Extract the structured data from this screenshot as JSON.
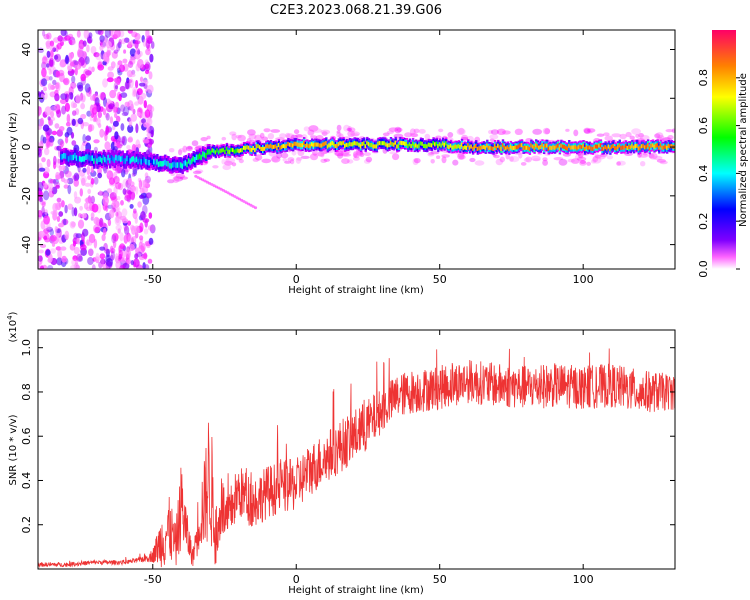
{
  "title": "C2E3.2023.068.21.39.G06",
  "chart_data": [
    {
      "type": "heatmap",
      "xlabel": "Height of straight line (km)",
      "ylabel": "Frequency (Hz)",
      "xlim": [
        -90,
        132
      ],
      "ylim": [
        -50,
        48
      ],
      "xticks": [
        -50,
        0,
        50,
        100
      ],
      "yticks": [
        -40,
        -20,
        0,
        20,
        40
      ],
      "colorbar": {
        "label": "Normalized spectral amplitude",
        "range": [
          0,
          1
        ],
        "ticks": [
          "0.0",
          "0.2",
          "0.4",
          "0.6",
          "0.8"
        ],
        "colormap": [
          "#ffffff",
          "#ff00ff",
          "#8000ff",
          "#0000ff",
          "#00ffff",
          "#00ff00",
          "#ffff00",
          "#ff8000",
          "#ff0000"
        ]
      },
      "trace": {
        "x": [
          -80,
          -70,
          -60,
          -50,
          -45,
          -40,
          -35,
          -30,
          -20,
          -10,
          0,
          10,
          20,
          30,
          40,
          50,
          60,
          70,
          80,
          90,
          100,
          110,
          120,
          130
        ],
        "frequency": [
          -4,
          -5,
          -5,
          -6,
          -7,
          -8,
          -5,
          -2,
          -1,
          0,
          1,
          1,
          1,
          1,
          1,
          1,
          0,
          0,
          0,
          0,
          0,
          0,
          0,
          0
        ],
        "amplitude": [
          0.45,
          0.5,
          0.45,
          0.45,
          0.5,
          0.5,
          0.55,
          0.6,
          0.7,
          0.8,
          0.8,
          0.8,
          0.75,
          0.75,
          0.75,
          0.7,
          0.8,
          0.85,
          0.85,
          0.85,
          0.85,
          0.85,
          0.85,
          0.85
        ]
      },
      "noise_region_x": [
        -90,
        -50
      ],
      "faint_branch": {
        "x": [
          -35,
          -25,
          -14
        ],
        "frequency": [
          -12,
          -18,
          -25
        ]
      }
    },
    {
      "type": "line",
      "xlabel": "Height of straight line (km)",
      "ylabel": "SNR (10 * v/v)",
      "y_multiplier": "(x10",
      "y_multiplier_exp": "4",
      "y_multiplier_close": ")",
      "xlim": [
        -90,
        132
      ],
      "ylim": [
        0,
        1.08
      ],
      "xticks": [
        -50,
        0,
        50,
        100
      ],
      "yticks": [
        "0.2",
        "0.4",
        "0.6",
        "0.8",
        "1.0"
      ],
      "series": [
        {
          "color": "#ee3333",
          "x": [
            -90,
            -80,
            -70,
            -60,
            -55,
            -50,
            -46,
            -44,
            -42,
            -40,
            -38,
            -36,
            -34,
            -32,
            -30,
            -28,
            -26,
            -24,
            -22,
            -20,
            -15,
            -10,
            -5,
            0,
            5,
            10,
            15,
            20,
            25,
            30,
            35,
            40,
            50,
            60,
            70,
            80,
            90,
            100,
            110,
            120,
            132
          ],
          "y": [
            0.02,
            0.02,
            0.03,
            0.03,
            0.04,
            0.06,
            0.15,
            0.18,
            0.1,
            0.3,
            0.15,
            0.05,
            0.22,
            0.3,
            0.45,
            0.08,
            0.3,
            0.2,
            0.3,
            0.35,
            0.3,
            0.35,
            0.37,
            0.38,
            0.45,
            0.5,
            0.55,
            0.6,
            0.65,
            0.72,
            0.78,
            0.8,
            0.82,
            0.85,
            0.83,
            0.82,
            0.83,
            0.82,
            0.83,
            0.8,
            0.8
          ],
          "noise": [
            0.01,
            0.01,
            0.01,
            0.01,
            0.01,
            0.03,
            0.15,
            0.15,
            0.1,
            0.2,
            0.1,
            0.04,
            0.15,
            0.2,
            0.35,
            0.08,
            0.15,
            0.12,
            0.12,
            0.12,
            0.12,
            0.12,
            0.12,
            0.12,
            0.12,
            0.12,
            0.12,
            0.12,
            0.12,
            0.1,
            0.1,
            0.1,
            0.1,
            0.1,
            0.1,
            0.1,
            0.1,
            0.1,
            0.1,
            0.1,
            0.08
          ]
        }
      ]
    }
  ]
}
